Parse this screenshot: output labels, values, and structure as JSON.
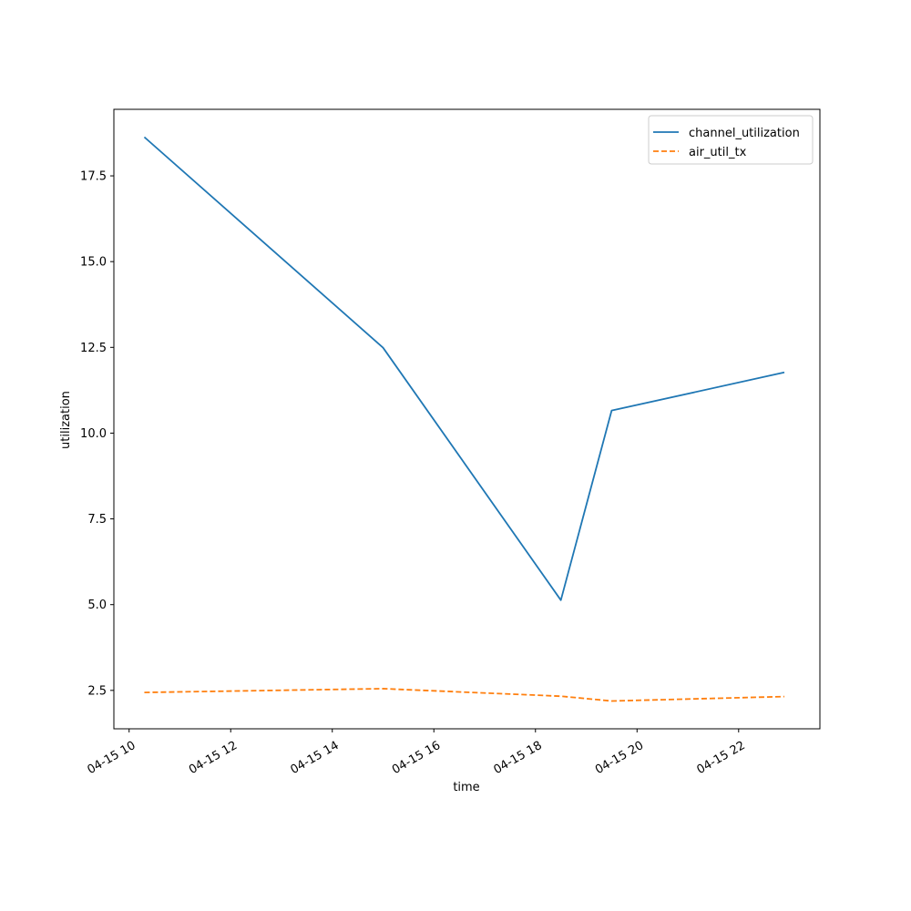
{
  "chart_data": {
    "type": "line",
    "title": "",
    "xlabel": "time",
    "ylabel": "utilization",
    "x_tick_labels": [
      "04-15 10",
      "04-15 12",
      "04-15 14",
      "04-15 16",
      "04-15 18",
      "04-15 20",
      "04-15 22"
    ],
    "x_ticks": [
      "2024-04-15 10:00",
      "2024-04-15 12:00",
      "2024-04-15 14:00",
      "2024-04-15 16:00",
      "2024-04-15 18:00",
      "2024-04-15 20:00",
      "2024-04-15 22:00"
    ],
    "y_tick_labels": [
      "2.5",
      "5.0",
      "7.5",
      "10.0",
      "12.5",
      "15.0",
      "17.5"
    ],
    "y_ticks": [
      2.5,
      5.0,
      7.5,
      10.0,
      12.5,
      15.0,
      17.5
    ],
    "ylim": [
      1.38,
      19.44
    ],
    "xlim": [
      "2024-04-15 09:42",
      "2024-04-15 23:36"
    ],
    "grid": false,
    "legend_position": "upper right",
    "series": [
      {
        "name": "channel_utilization",
        "color": "#1f77b4",
        "linestyle": "solid",
        "x": [
          "2024-04-15 10:18",
          "2024-04-15 15:00",
          "2024-04-15 18:30",
          "2024-04-15 19:30",
          "2024-04-15 22:54"
        ],
        "y": [
          18.63,
          12.49,
          5.13,
          10.66,
          11.77
        ]
      },
      {
        "name": "air_util_tx",
        "color": "#ff7f0e",
        "linestyle": "dashed",
        "x": [
          "2024-04-15 10:18",
          "2024-04-15 15:00",
          "2024-04-15 18:30",
          "2024-04-15 19:30",
          "2024-04-15 22:54"
        ],
        "y": [
          2.44,
          2.55,
          2.33,
          2.19,
          2.32
        ]
      }
    ]
  }
}
